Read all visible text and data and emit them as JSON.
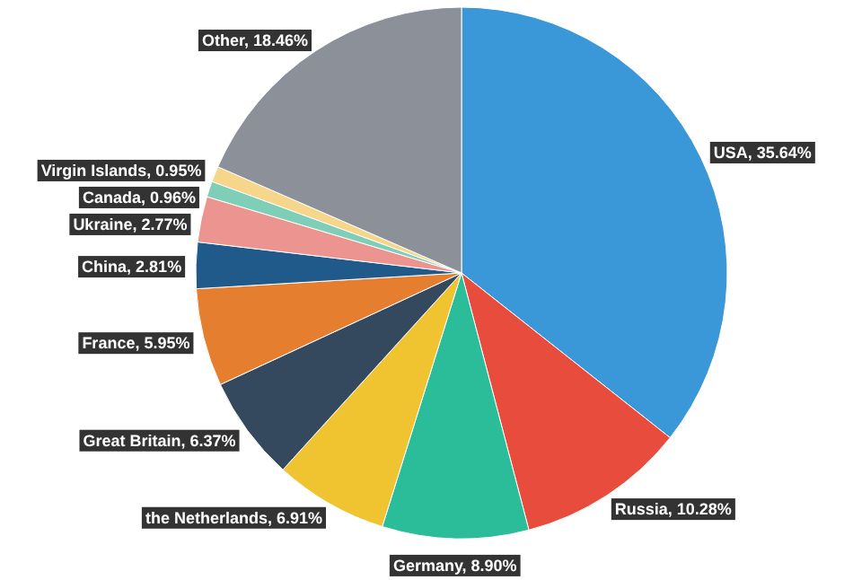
{
  "chart_data": {
    "type": "pie",
    "categories": [
      "USA",
      "Russia",
      "Germany",
      "the Netherlands",
      "Great Britain",
      "France",
      "China",
      "Ukraine",
      "Canada",
      "Virgin Islands",
      "Other"
    ],
    "values": [
      35.64,
      10.28,
      8.9,
      6.91,
      6.37,
      5.95,
      2.81,
      2.77,
      0.96,
      0.95,
      18.46
    ],
    "value_labels": [
      "35.64%",
      "10.28%",
      "8.90%",
      "6.91%",
      "6.37%",
      "5.95%",
      "2.81%",
      "2.77%",
      "0.96%",
      "0.95%",
      "18.46%"
    ],
    "colors": [
      "#3a97d8",
      "#e74c3c",
      "#2bbc9a",
      "#f0c330",
      "#34495e",
      "#e67e30",
      "#1f5a8a",
      "#ec9590",
      "#7fcfb8",
      "#f5d68a",
      "#8c9099"
    ]
  }
}
